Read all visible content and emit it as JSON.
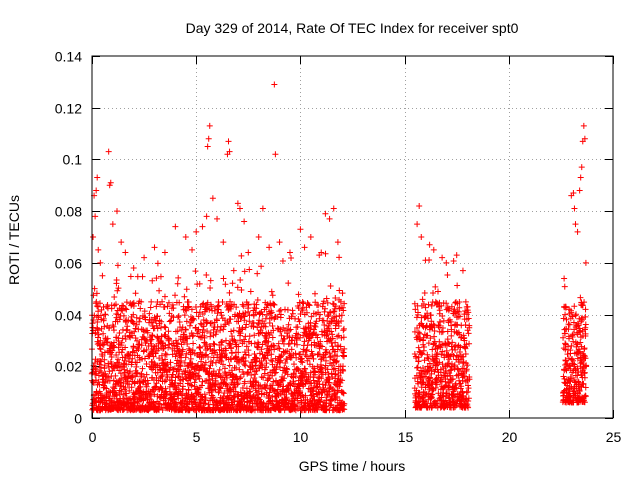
{
  "chart_data": {
    "type": "scatter",
    "title": "Day 329 of 2014, Rate Of TEC Index for receiver spt0",
    "xlabel": "GPS time / hours",
    "ylabel": "ROTI / TECUs",
    "xlim": [
      0,
      25
    ],
    "ylim": [
      0,
      0.14
    ],
    "xticks": [
      0,
      5,
      10,
      15,
      20,
      25
    ],
    "xtick_labels": [
      "0",
      "5",
      "10",
      "15",
      "20",
      "25"
    ],
    "yticks": [
      0,
      0.02,
      0.04,
      0.06,
      0.08,
      0.1,
      0.12,
      0.14
    ],
    "ytick_labels": [
      "0",
      "0.02",
      "0.04",
      "0.06",
      "0.08",
      "0.1",
      "0.12",
      "0.14"
    ],
    "grid": true,
    "marker": "plus",
    "colors": {
      "marker": "#ff0000",
      "grid": "#a0a0a0",
      "axes": "#000000"
    },
    "series": [
      {
        "name": "spt0 ROTI",
        "segments": [
          {
            "x_range": [
              0.0,
              12.1
            ],
            "typical_range": [
              0.003,
              0.045
            ]
          },
          {
            "x_range": [
              15.5,
              18.1
            ],
            "typical_range": [
              0.004,
              0.045
            ]
          },
          {
            "x_range": [
              22.6,
              23.7
            ],
            "typical_range": [
              0.006,
              0.045
            ]
          }
        ],
        "points": [
          [
            0.05,
            0.07
          ],
          [
            0.1,
            0.086
          ],
          [
            0.15,
            0.078
          ],
          [
            0.2,
            0.088
          ],
          [
            0.25,
            0.093
          ],
          [
            0.3,
            0.065
          ],
          [
            0.4,
            0.06
          ],
          [
            0.5,
            0.055
          ],
          [
            0.8,
            0.103
          ],
          [
            0.85,
            0.09
          ],
          [
            0.9,
            0.091
          ],
          [
            1.0,
            0.075
          ],
          [
            1.2,
            0.08
          ],
          [
            1.4,
            0.068
          ],
          [
            1.6,
            0.064
          ],
          [
            2.0,
            0.058
          ],
          [
            2.5,
            0.062
          ],
          [
            3.0,
            0.066
          ],
          [
            3.5,
            0.064
          ],
          [
            4.0,
            0.074
          ],
          [
            4.5,
            0.07
          ],
          [
            4.8,
            0.065
          ],
          [
            5.0,
            0.072
          ],
          [
            5.3,
            0.074
          ],
          [
            5.5,
            0.078
          ],
          [
            5.55,
            0.105
          ],
          [
            5.6,
            0.108
          ],
          [
            5.65,
            0.113
          ],
          [
            5.8,
            0.085
          ],
          [
            6.0,
            0.077
          ],
          [
            6.3,
            0.068
          ],
          [
            6.5,
            0.102
          ],
          [
            6.55,
            0.107
          ],
          [
            6.6,
            0.103
          ],
          [
            7.0,
            0.083
          ],
          [
            7.1,
            0.081
          ],
          [
            7.3,
            0.076
          ],
          [
            7.5,
            0.064
          ],
          [
            8.0,
            0.07
          ],
          [
            8.2,
            0.081
          ],
          [
            8.5,
            0.066
          ],
          [
            8.75,
            0.129
          ],
          [
            8.8,
            0.102
          ],
          [
            9.0,
            0.068
          ],
          [
            9.5,
            0.064
          ],
          [
            10.0,
            0.073
          ],
          [
            10.2,
            0.066
          ],
          [
            10.5,
            0.07
          ],
          [
            11.0,
            0.064
          ],
          [
            11.2,
            0.079
          ],
          [
            11.4,
            0.077
          ],
          [
            11.6,
            0.081
          ],
          [
            11.8,
            0.068
          ],
          [
            15.6,
            0.075
          ],
          [
            15.7,
            0.082
          ],
          [
            15.8,
            0.07
          ],
          [
            16.0,
            0.061
          ],
          [
            16.2,
            0.067
          ],
          [
            16.4,
            0.065
          ],
          [
            16.8,
            0.062
          ],
          [
            17.0,
            0.06
          ],
          [
            17.5,
            0.063
          ],
          [
            17.8,
            0.057
          ],
          [
            22.7,
            0.04
          ],
          [
            22.9,
            0.042
          ],
          [
            23.0,
            0.086
          ],
          [
            23.1,
            0.087
          ],
          [
            23.15,
            0.081
          ],
          [
            23.2,
            0.075
          ],
          [
            23.3,
            0.072
          ],
          [
            23.4,
            0.088
          ],
          [
            23.45,
            0.093
          ],
          [
            23.5,
            0.097
          ],
          [
            23.55,
            0.107
          ],
          [
            23.6,
            0.113
          ],
          [
            23.65,
            0.108
          ],
          [
            23.7,
            0.06
          ]
        ]
      }
    ]
  }
}
